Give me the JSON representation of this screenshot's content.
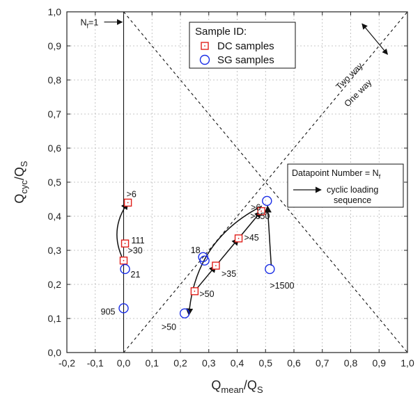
{
  "chart_data": {
    "type": "scatter",
    "xlabel": {
      "main": "Q",
      "sub": "mean",
      "tail": "/Q",
      "tailsub": "S"
    },
    "ylabel": {
      "main": "Q",
      "sub": "cyc",
      "tail": "/Q",
      "tailsub": "S"
    },
    "xlim": [
      -0.2,
      1.0
    ],
    "ylim": [
      0.0,
      1.0
    ],
    "x_ticks": [
      "-0,2",
      "-0,1",
      "0,0",
      "0,1",
      "0,2",
      "0,3",
      "0,4",
      "0,5",
      "0,6",
      "0,7",
      "0,8",
      "0,9",
      "1,0"
    ],
    "y_ticks": [
      "0,0",
      "0,1",
      "0,2",
      "0,3",
      "0,4",
      "0,5",
      "0,6",
      "0,7",
      "0,8",
      "0,9",
      "1,0"
    ],
    "grid": true,
    "legend": {
      "title": "Sample ID:",
      "placement": "top-center",
      "entries": [
        "DC samples",
        "SG samples"
      ]
    },
    "series": [
      {
        "name": "DC samples",
        "marker": "square",
        "color": "#e0201b",
        "points": [
          {
            "x": 0.0,
            "y": 0.27,
            "label": ">30"
          },
          {
            "x": 0.005,
            "y": 0.32,
            "label": "111"
          },
          {
            "x": 0.015,
            "y": 0.44,
            "label": ">6"
          },
          {
            "x": 0.25,
            "y": 0.18,
            "label": ">50"
          },
          {
            "x": 0.325,
            "y": 0.255,
            "label": ">35"
          },
          {
            "x": 0.405,
            "y": 0.335,
            "label": ">45"
          },
          {
            "x": 0.485,
            "y": 0.415,
            "label": ">6"
          }
        ]
      },
      {
        "name": "SG samples",
        "marker": "circle",
        "color": "#1a2ee6",
        "points": [
          {
            "x": 0.0,
            "y": 0.13,
            "label": "905"
          },
          {
            "x": 0.005,
            "y": 0.245,
            "label": "21"
          },
          {
            "x": 0.215,
            "y": 0.115,
            "label": ">50"
          },
          {
            "x": 0.28,
            "y": 0.28,
            "label": "18"
          },
          {
            "x": 0.285,
            "y": 0.27,
            "label": ""
          },
          {
            "x": 0.505,
            "y": 0.445,
            "label": ">650"
          },
          {
            "x": 0.515,
            "y": 0.245,
            "label": ">1500"
          }
        ]
      }
    ],
    "reference_lines": [
      {
        "from": [
          0.0,
          0.0
        ],
        "to": [
          1.0,
          1.0
        ],
        "style": "dashed"
      },
      {
        "from": [
          0.0,
          1.0
        ],
        "to": [
          1.0,
          0.0
        ],
        "style": "dashed"
      },
      {
        "from": [
          0.0,
          0.0
        ],
        "to": [
          0.0,
          1.0
        ],
        "style": "solid"
      }
    ],
    "arrows": [
      {
        "from": [
          0.0,
          0.27
        ],
        "to": [
          0.015,
          0.44
        ],
        "curve": -0.3
      },
      {
        "from": [
          0.25,
          0.18
        ],
        "to": [
          0.325,
          0.255
        ],
        "curve": 0
      },
      {
        "from": [
          0.325,
          0.255
        ],
        "to": [
          0.405,
          0.335
        ],
        "curve": 0
      },
      {
        "from": [
          0.405,
          0.335
        ],
        "to": [
          0.485,
          0.415
        ],
        "curve": 0
      },
      {
        "from": [
          0.487,
          0.43
        ],
        "to": [
          0.23,
          0.11
        ],
        "curve": 0.28
      },
      {
        "from": [
          0.52,
          0.255
        ],
        "to": [
          0.507,
          0.43
        ],
        "curve": 0
      }
    ],
    "annotations": {
      "nf_label": {
        "main": "N",
        "sub": "f",
        "tail": "=1"
      },
      "two_way": "Two way",
      "one_way": "One way",
      "info_box": {
        "line1_main": "Datapoint Number = N",
        "line1_sub": "f",
        "line2": "cyclic loading",
        "line3": "sequence"
      }
    }
  }
}
